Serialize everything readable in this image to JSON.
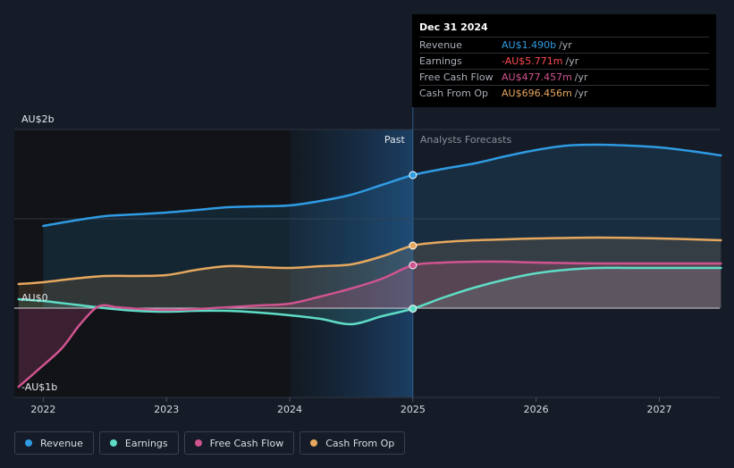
{
  "chart_data": {
    "type": "line",
    "y_unit": "AU$ billions",
    "ylim": [
      -1,
      2
    ],
    "y_ticks": [
      {
        "value": 2,
        "label": "AU$2b"
      },
      {
        "value": 0,
        "label": "AU$0"
      },
      {
        "value": -1,
        "label": "-AU$1b"
      }
    ],
    "xlim": [
      2021.8,
      2027.5
    ],
    "x_ticks": [
      {
        "value": 2022,
        "label": "2022"
      },
      {
        "value": 2023,
        "label": "2023"
      },
      {
        "value": 2024,
        "label": "2024"
      },
      {
        "value": 2025,
        "label": "2025"
      },
      {
        "value": 2026,
        "label": "2026"
      },
      {
        "value": 2027,
        "label": "2027"
      }
    ],
    "divider_x": 2025,
    "shade_start_x": 2024,
    "past_label": "Past",
    "forecast_label": "Analysts Forecasts",
    "series": [
      {
        "name": "Revenue",
        "color": "#2f9be3",
        "points": [
          [
            2022,
            0.92
          ],
          [
            2022.25,
            0.98
          ],
          [
            2022.5,
            1.03
          ],
          [
            2022.75,
            1.05
          ],
          [
            2023,
            1.07
          ],
          [
            2023.25,
            1.1
          ],
          [
            2023.5,
            1.13
          ],
          [
            2023.75,
            1.14
          ],
          [
            2024,
            1.15
          ],
          [
            2024.25,
            1.2
          ],
          [
            2024.5,
            1.27
          ],
          [
            2024.75,
            1.38
          ],
          [
            2025,
            1.49
          ],
          [
            2025.25,
            1.56
          ],
          [
            2025.5,
            1.62
          ],
          [
            2025.75,
            1.7
          ],
          [
            2026,
            1.77
          ],
          [
            2026.25,
            1.82
          ],
          [
            2026.5,
            1.83
          ],
          [
            2026.75,
            1.82
          ],
          [
            2027,
            1.8
          ],
          [
            2027.25,
            1.76
          ],
          [
            2027.5,
            1.71
          ]
        ]
      },
      {
        "name": "Earnings",
        "color": "#5fdcc6",
        "points": [
          [
            2021.8,
            0.1
          ],
          [
            2022,
            0.08
          ],
          [
            2022.25,
            0.04
          ],
          [
            2022.5,
            0
          ],
          [
            2022.75,
            -0.03
          ],
          [
            2023,
            -0.04
          ],
          [
            2023.25,
            -0.03
          ],
          [
            2023.5,
            -0.03
          ],
          [
            2023.75,
            -0.05
          ],
          [
            2024,
            -0.08
          ],
          [
            2024.25,
            -0.12
          ],
          [
            2024.5,
            -0.18
          ],
          [
            2024.75,
            -0.09
          ],
          [
            2025,
            -0.006
          ],
          [
            2025.25,
            0.12
          ],
          [
            2025.5,
            0.23
          ],
          [
            2025.75,
            0.32
          ],
          [
            2026,
            0.39
          ],
          [
            2026.25,
            0.43
          ],
          [
            2026.5,
            0.45
          ],
          [
            2026.75,
            0.45
          ],
          [
            2027,
            0.45
          ],
          [
            2027.5,
            0.45
          ]
        ]
      },
      {
        "name": "Free Cash Flow",
        "color": "#d05490",
        "points": [
          [
            2021.8,
            -0.88
          ],
          [
            2021.95,
            -0.7
          ],
          [
            2022.15,
            -0.45
          ],
          [
            2022.3,
            -0.18
          ],
          [
            2022.45,
            0.02
          ],
          [
            2022.6,
            0.01
          ],
          [
            2022.8,
            -0.01
          ],
          [
            2023,
            -0.02
          ],
          [
            2023.25,
            -0.01
          ],
          [
            2023.5,
            0.01
          ],
          [
            2023.75,
            0.03
          ],
          [
            2024,
            0.05
          ],
          [
            2024.25,
            0.13
          ],
          [
            2024.5,
            0.22
          ],
          [
            2024.75,
            0.33
          ],
          [
            2025,
            0.48
          ],
          [
            2025.25,
            0.51
          ],
          [
            2025.5,
            0.52
          ],
          [
            2025.75,
            0.52
          ],
          [
            2026,
            0.51
          ],
          [
            2026.5,
            0.5
          ],
          [
            2027,
            0.5
          ],
          [
            2027.5,
            0.5
          ]
        ]
      },
      {
        "name": "Cash From Op",
        "color": "#e6a85e",
        "points": [
          [
            2021.8,
            0.27
          ],
          [
            2022,
            0.29
          ],
          [
            2022.25,
            0.33
          ],
          [
            2022.5,
            0.36
          ],
          [
            2022.75,
            0.36
          ],
          [
            2023,
            0.37
          ],
          [
            2023.25,
            0.43
          ],
          [
            2023.5,
            0.47
          ],
          [
            2023.75,
            0.46
          ],
          [
            2024,
            0.45
          ],
          [
            2024.25,
            0.47
          ],
          [
            2024.5,
            0.49
          ],
          [
            2024.75,
            0.58
          ],
          [
            2025,
            0.7
          ],
          [
            2025.25,
            0.74
          ],
          [
            2025.5,
            0.76
          ],
          [
            2025.75,
            0.77
          ],
          [
            2026,
            0.78
          ],
          [
            2026.5,
            0.79
          ],
          [
            2027,
            0.78
          ],
          [
            2027.5,
            0.76
          ]
        ]
      }
    ],
    "highlight_x": 2025
  },
  "tooltip": {
    "date": "Dec 31 2024",
    "rows": [
      {
        "label": "Revenue",
        "value": "AU$1.490b",
        "unit": "/yr",
        "color": "#2f9be3"
      },
      {
        "label": "Earnings",
        "value": "-AU$5.771m",
        "unit": "/yr",
        "color": "#ff4c55"
      },
      {
        "label": "Free Cash Flow",
        "value": "AU$477.457m",
        "unit": "/yr",
        "color": "#d05490"
      },
      {
        "label": "Cash From Op",
        "value": "AU$696.456m",
        "unit": "/yr",
        "color": "#e6a85e"
      }
    ]
  },
  "legend": [
    {
      "label": "Revenue",
      "color": "#2f9be3"
    },
    {
      "label": "Earnings",
      "color": "#5fdcc6"
    },
    {
      "label": "Free Cash Flow",
      "color": "#d05490"
    },
    {
      "label": "Cash From Op",
      "color": "#e6a85e"
    }
  ]
}
